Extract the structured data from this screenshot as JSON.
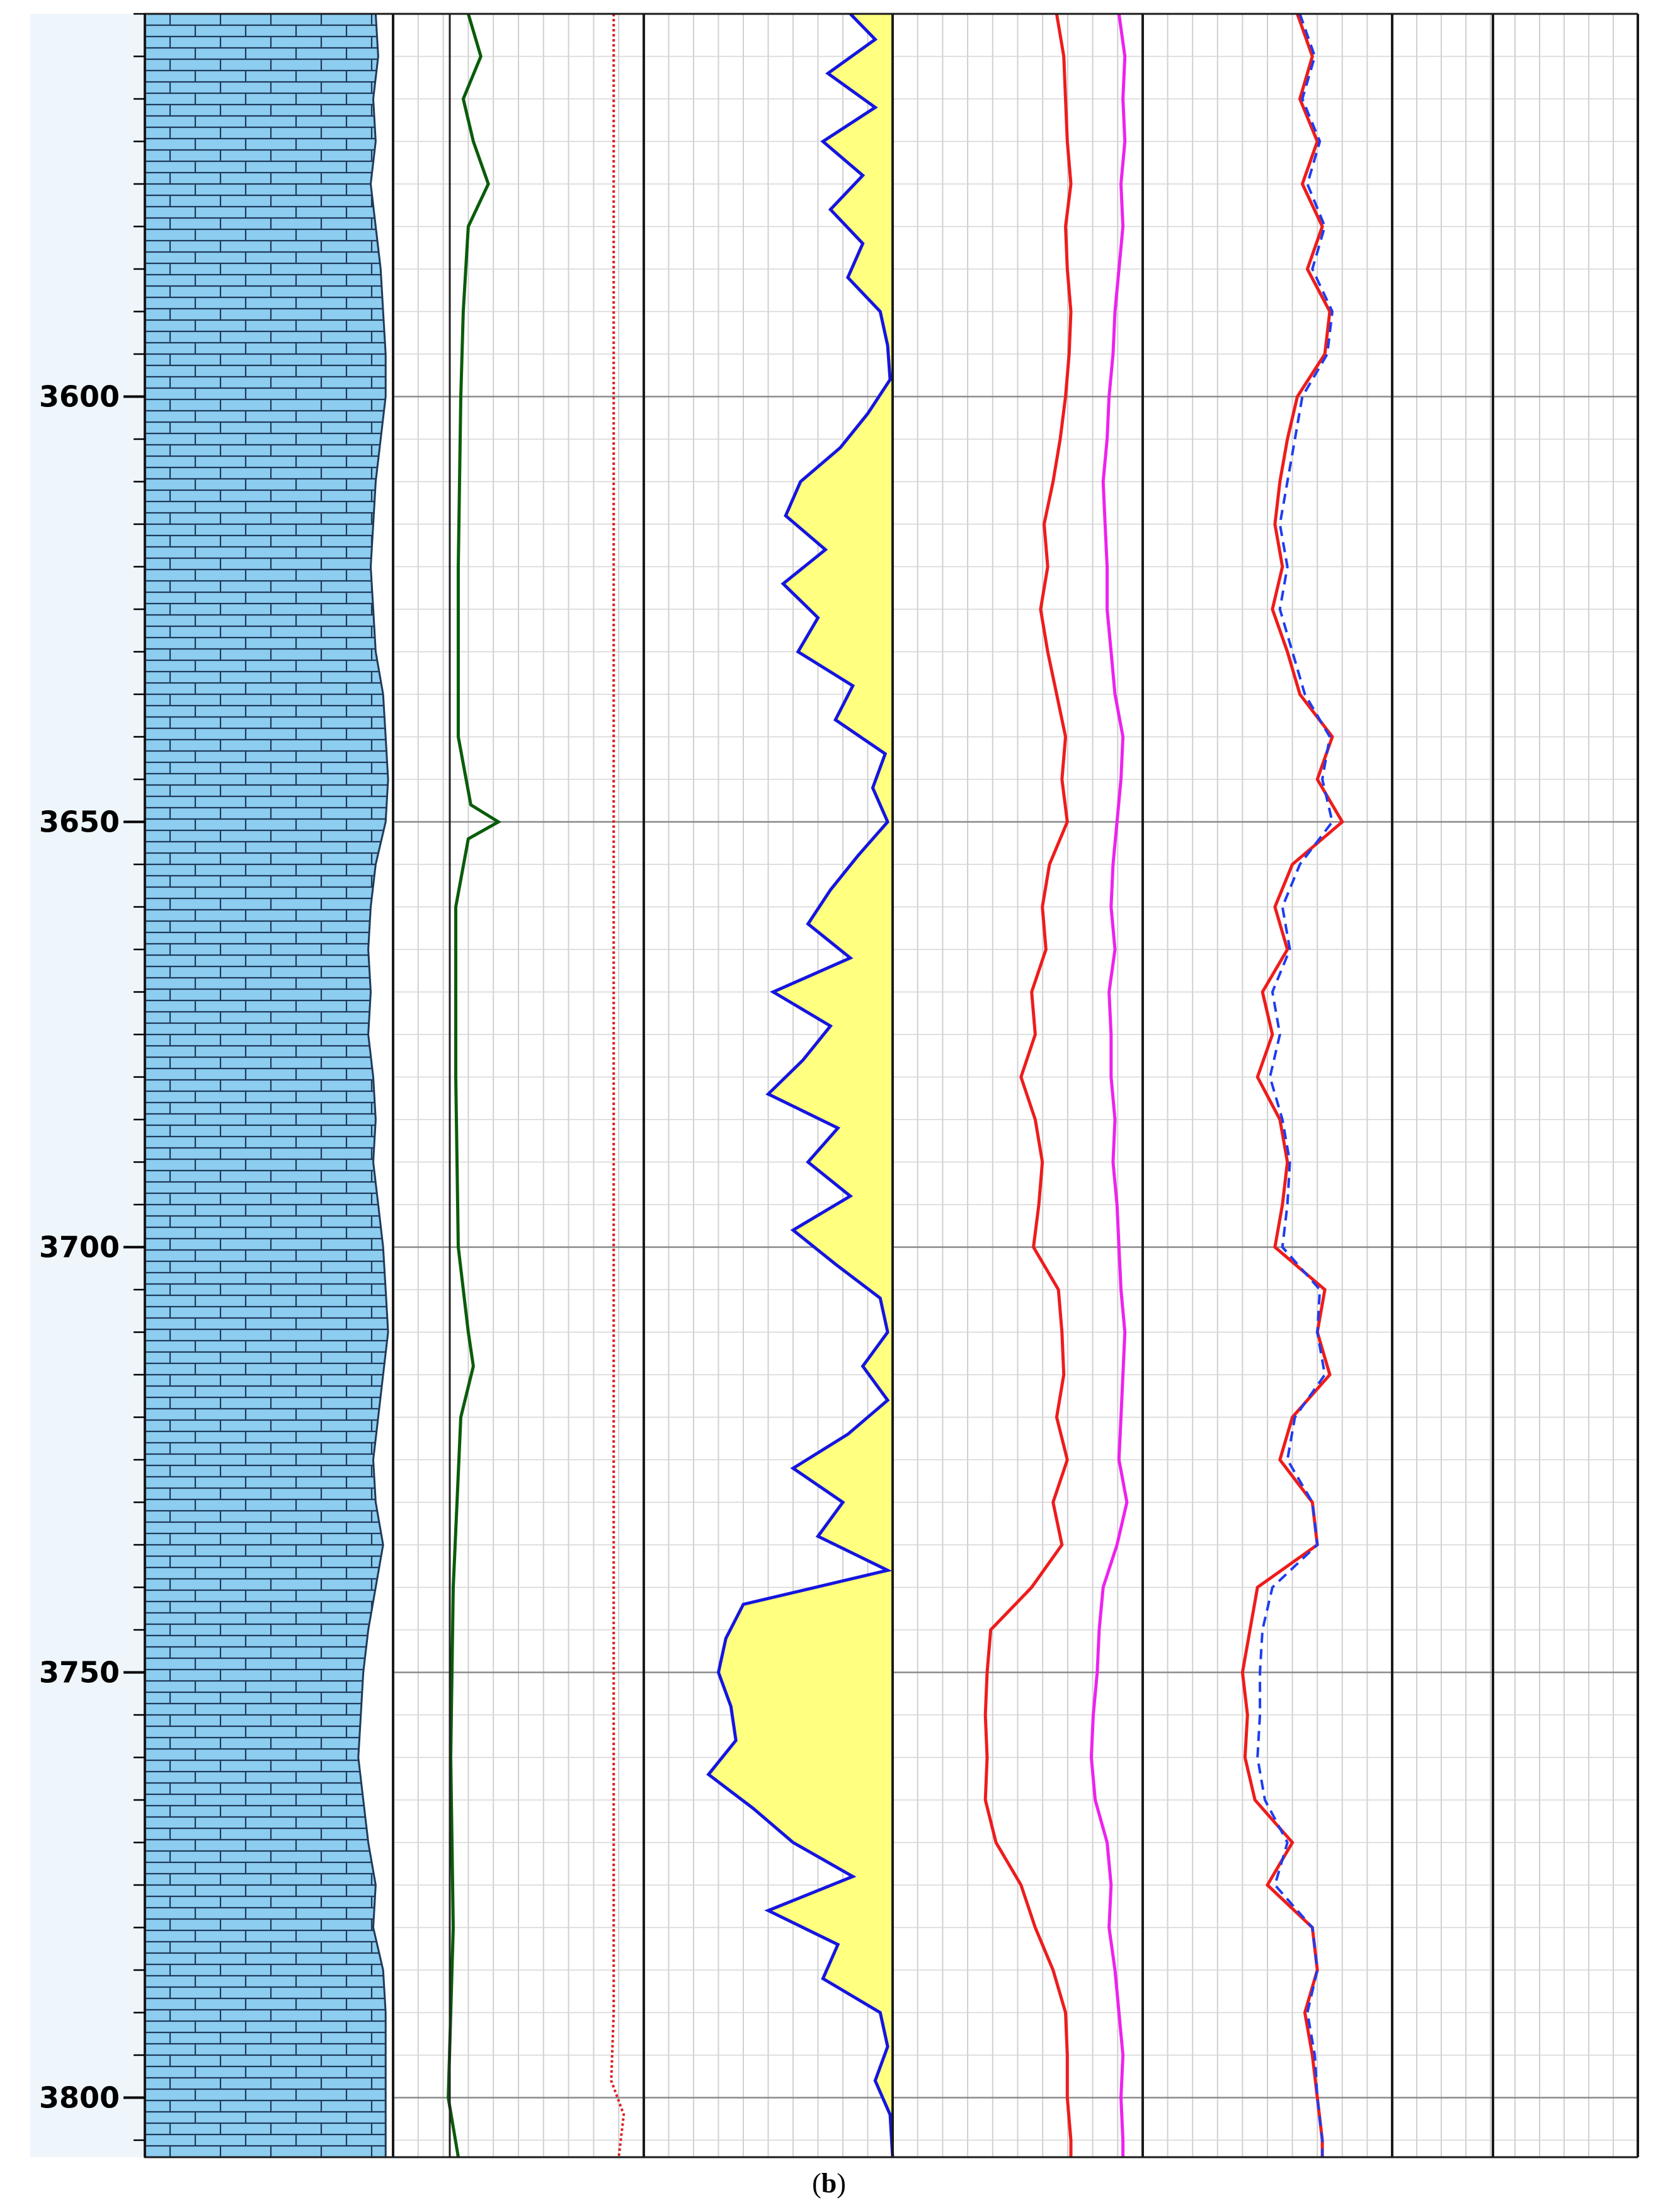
{
  "caption": {
    "open": "(",
    "letter": "b",
    "close": ")"
  },
  "chart_data": {
    "type": "line",
    "title": "",
    "depth_axis": {
      "range": [
        3555,
        3807
      ],
      "major_ticks": [
        3600,
        3650,
        3700,
        3750,
        3800
      ],
      "tick_labels": [
        "3600",
        "3650",
        "3700",
        "3750",
        "3800"
      ],
      "minor_tick_step": 5
    },
    "grid": true,
    "colors": {
      "lithology_fill": "#8ccdf0",
      "depth_band": "#eef6fc",
      "green_curve": "#0a5c0a",
      "red_dotted_curve": "#e02020",
      "gamma_curve": "#1515e0",
      "gamma_fill": "#ffff80",
      "red_curve": "#ee1c1c",
      "magenta_curve": "#ee22ee",
      "dashed_blue_curve": "#1e3cf0",
      "overlay_red_curve": "#ee1c1c"
    },
    "tracks": [
      {
        "id": "lithology",
        "pattern": "brick",
        "curve": "caliper_edge",
        "depths": [
          3555,
          3560,
          3565,
          3570,
          3575,
          3580,
          3585,
          3590,
          3595,
          3600,
          3605,
          3610,
          3615,
          3620,
          3625,
          3630,
          3635,
          3640,
          3645,
          3650,
          3655,
          3660,
          3665,
          3670,
          3675,
          3680,
          3685,
          3690,
          3695,
          3700,
          3705,
          3710,
          3715,
          3720,
          3725,
          3730,
          3735,
          3740,
          3745,
          3750,
          3755,
          3760,
          3765,
          3770,
          3775,
          3780,
          3785,
          3790,
          3795,
          3800,
          3805,
          3807
        ],
        "values": [
          0.93,
          0.94,
          0.92,
          0.93,
          0.91,
          0.93,
          0.95,
          0.96,
          0.97,
          0.97,
          0.95,
          0.93,
          0.92,
          0.91,
          0.92,
          0.93,
          0.96,
          0.97,
          0.98,
          0.97,
          0.93,
          0.91,
          0.9,
          0.91,
          0.9,
          0.92,
          0.93,
          0.92,
          0.94,
          0.96,
          0.97,
          0.98,
          0.96,
          0.94,
          0.92,
          0.93,
          0.96,
          0.93,
          0.9,
          0.88,
          0.87,
          0.86,
          0.88,
          0.9,
          0.93,
          0.92,
          0.96,
          0.97,
          0.97,
          0.97,
          0.97,
          0.97
        ]
      },
      {
        "id": "resistivity_pair",
        "green": {
          "depths": [
            3555,
            3560,
            3565,
            3570,
            3575,
            3580,
            3590,
            3600,
            3620,
            3640,
            3648,
            3650,
            3652,
            3660,
            3680,
            3700,
            3710,
            3714,
            3720,
            3740,
            3760,
            3780,
            3800,
            3807
          ],
          "values": [
            0.3,
            0.35,
            0.28,
            0.32,
            0.38,
            0.3,
            0.28,
            0.27,
            0.26,
            0.26,
            0.31,
            0.42,
            0.3,
            0.25,
            0.25,
            0.26,
            0.3,
            0.32,
            0.27,
            0.24,
            0.23,
            0.24,
            0.22,
            0.26
          ]
        },
        "red_dotted": {
          "depths": [
            3555,
            3600,
            3700,
            3790,
            3798,
            3802,
            3807
          ],
          "values": [
            0.88,
            0.88,
            0.88,
            0.88,
            0.87,
            0.92,
            0.9
          ]
        }
      },
      {
        "id": "gamma_ray",
        "fill": "to_right",
        "depths": [
          3555,
          3558,
          3562,
          3566,
          3570,
          3574,
          3578,
          3582,
          3586,
          3590,
          3594,
          3598,
          3602,
          3606,
          3610,
          3614,
          3618,
          3622,
          3626,
          3630,
          3634,
          3638,
          3642,
          3646,
          3650,
          3654,
          3658,
          3662,
          3666,
          3670,
          3674,
          3678,
          3682,
          3686,
          3690,
          3694,
          3698,
          3702,
          3706,
          3710,
          3714,
          3718,
          3722,
          3726,
          3730,
          3734,
          3738,
          3742,
          3746,
          3750,
          3754,
          3758,
          3762,
          3766,
          3770,
          3774,
          3778,
          3782,
          3786,
          3790,
          3794,
          3798,
          3802,
          3807
        ],
        "values": [
          0.83,
          0.93,
          0.74,
          0.93,
          0.72,
          0.88,
          0.75,
          0.88,
          0.82,
          0.95,
          0.98,
          0.99,
          0.9,
          0.79,
          0.63,
          0.57,
          0.73,
          0.56,
          0.7,
          0.62,
          0.84,
          0.77,
          0.97,
          0.92,
          0.98,
          0.86,
          0.75,
          0.66,
          0.83,
          0.52,
          0.75,
          0.64,
          0.5,
          0.78,
          0.66,
          0.83,
          0.6,
          0.77,
          0.95,
          0.98,
          0.88,
          0.98,
          0.82,
          0.6,
          0.8,
          0.7,
          0.98,
          0.4,
          0.33,
          0.3,
          0.35,
          0.37,
          0.26,
          0.44,
          0.6,
          0.84,
          0.5,
          0.78,
          0.72,
          0.95,
          0.98,
          0.93,
          0.99,
          1.0
        ]
      },
      {
        "id": "red_magenta",
        "red": {
          "depths": [
            3555,
            3560,
            3565,
            3570,
            3575,
            3580,
            3585,
            3590,
            3595,
            3600,
            3605,
            3610,
            3615,
            3620,
            3625,
            3630,
            3635,
            3640,
            3645,
            3650,
            3655,
            3660,
            3665,
            3670,
            3675,
            3680,
            3685,
            3690,
            3695,
            3700,
            3705,
            3710,
            3715,
            3720,
            3725,
            3730,
            3735,
            3740,
            3745,
            3750,
            3755,
            3760,
            3765,
            3770,
            3775,
            3780,
            3785,
            3790,
            3795,
            3800,
            3805,
            3807
          ],
          "values": [
            0.92,
            0.96,
            0.97,
            0.98,
            1.0,
            0.97,
            0.98,
            1.0,
            0.99,
            0.97,
            0.94,
            0.9,
            0.85,
            0.87,
            0.83,
            0.87,
            0.92,
            0.97,
            0.95,
            0.98,
            0.88,
            0.84,
            0.86,
            0.78,
            0.8,
            0.72,
            0.8,
            0.84,
            0.82,
            0.79,
            0.93,
            0.95,
            0.96,
            0.92,
            0.98,
            0.9,
            0.95,
            0.78,
            0.55,
            0.53,
            0.52,
            0.53,
            0.52,
            0.58,
            0.72,
            0.8,
            0.9,
            0.97,
            0.98,
            0.98,
            1.0,
            1.0
          ]
        },
        "magenta": {
          "depths": [
            3555,
            3560,
            3565,
            3570,
            3575,
            3580,
            3585,
            3590,
            3595,
            3600,
            3605,
            3610,
            3615,
            3620,
            3625,
            3630,
            3635,
            3640,
            3645,
            3650,
            3655,
            3660,
            3665,
            3670,
            3675,
            3680,
            3685,
            3690,
            3695,
            3700,
            3705,
            3710,
            3715,
            3720,
            3725,
            3730,
            3735,
            3740,
            3745,
            3750,
            3755,
            3760,
            3765,
            3770,
            3775,
            3780,
            3785,
            3790,
            3795,
            3800,
            3805,
            3807
          ],
          "values": [
            0.88,
            0.91,
            0.9,
            0.91,
            0.89,
            0.9,
            0.88,
            0.86,
            0.85,
            0.83,
            0.82,
            0.8,
            0.81,
            0.82,
            0.82,
            0.84,
            0.86,
            0.9,
            0.89,
            0.87,
            0.85,
            0.84,
            0.86,
            0.83,
            0.84,
            0.84,
            0.86,
            0.85,
            0.87,
            0.88,
            0.89,
            0.91,
            0.9,
            0.89,
            0.88,
            0.92,
            0.87,
            0.8,
            0.78,
            0.77,
            0.75,
            0.74,
            0.76,
            0.82,
            0.84,
            0.83,
            0.86,
            0.88,
            0.9,
            0.89,
            0.9,
            0.9
          ]
        }
      },
      {
        "id": "dual_curve_overlay",
        "red": {
          "depths": [
            3555,
            3560,
            3565,
            3570,
            3575,
            3580,
            3585,
            3590,
            3595,
            3600,
            3605,
            3610,
            3615,
            3620,
            3625,
            3630,
            3635,
            3640,
            3645,
            3650,
            3655,
            3660,
            3665,
            3670,
            3675,
            3680,
            3685,
            3690,
            3695,
            3700,
            3705,
            3710,
            3715,
            3720,
            3725,
            3730,
            3735,
            3740,
            3745,
            3750,
            3755,
            3760,
            3765,
            3770,
            3775,
            3780,
            3785,
            3790,
            3795,
            3800,
            3805,
            3807
          ],
          "values": [
            0.62,
            0.68,
            0.63,
            0.7,
            0.64,
            0.72,
            0.66,
            0.75,
            0.73,
            0.62,
            0.58,
            0.55,
            0.53,
            0.56,
            0.52,
            0.58,
            0.63,
            0.76,
            0.7,
            0.8,
            0.6,
            0.53,
            0.58,
            0.48,
            0.52,
            0.46,
            0.55,
            0.58,
            0.56,
            0.53,
            0.73,
            0.7,
            0.75,
            0.6,
            0.55,
            0.68,
            0.7,
            0.46,
            0.43,
            0.4,
            0.42,
            0.41,
            0.45,
            0.6,
            0.5,
            0.68,
            0.7,
            0.65,
            0.68,
            0.7,
            0.72,
            0.72
          ]
        },
        "blue_dashed": {
          "depths": [
            3555,
            3560,
            3565,
            3570,
            3575,
            3580,
            3585,
            3590,
            3595,
            3600,
            3605,
            3610,
            3615,
            3620,
            3625,
            3630,
            3635,
            3640,
            3645,
            3650,
            3655,
            3660,
            3665,
            3670,
            3675,
            3680,
            3685,
            3690,
            3695,
            3700,
            3705,
            3710,
            3715,
            3720,
            3725,
            3730,
            3735,
            3740,
            3745,
            3750,
            3755,
            3760,
            3765,
            3770,
            3775,
            3780,
            3785,
            3790,
            3795,
            3800,
            3805,
            3807
          ],
          "values": [
            0.63,
            0.69,
            0.64,
            0.71,
            0.66,
            0.73,
            0.68,
            0.76,
            0.74,
            0.64,
            0.61,
            0.58,
            0.55,
            0.58,
            0.55,
            0.6,
            0.65,
            0.75,
            0.72,
            0.76,
            0.63,
            0.56,
            0.59,
            0.52,
            0.55,
            0.51,
            0.56,
            0.59,
            0.58,
            0.56,
            0.71,
            0.7,
            0.73,
            0.61,
            0.58,
            0.68,
            0.7,
            0.52,
            0.48,
            0.47,
            0.47,
            0.46,
            0.49,
            0.58,
            0.53,
            0.68,
            0.7,
            0.66,
            0.69,
            0.7,
            0.72,
            0.72
          ]
        }
      }
    ]
  }
}
